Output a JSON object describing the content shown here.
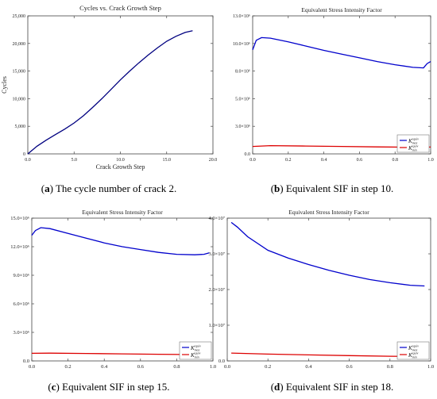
{
  "chart_data": [
    {
      "type": "line",
      "title": "Cycles vs. Crack Growth Step",
      "xlabel": "Crack Growth Step",
      "ylabel": "Cycles",
      "xlim": [
        0,
        20
      ],
      "ylim": [
        0,
        25000
      ],
      "x_ticks": [
        "0.0",
        "5.0",
        "10.0",
        "15.0",
        "20.0"
      ],
      "y_ticks": [
        "0",
        "5,000",
        "10,000",
        "15,000",
        "20,000",
        "25,000"
      ],
      "series": [
        {
          "color": "#000080",
          "points": [
            [
              0,
              0
            ],
            [
              1,
              1400
            ],
            [
              2,
              2500
            ],
            [
              3,
              3500
            ],
            [
              4,
              4500
            ],
            [
              5,
              5600
            ],
            [
              6,
              6900
            ],
            [
              7,
              8400
            ],
            [
              8,
              10000
            ],
            [
              9,
              11700
            ],
            [
              10,
              13400
            ],
            [
              11,
              15000
            ],
            [
              12,
              16500
            ],
            [
              13,
              17900
            ],
            [
              14,
              19200
            ],
            [
              15,
              20400
            ],
            [
              16,
              21300
            ],
            [
              17,
              22000
            ],
            [
              17.8,
              22300
            ]
          ]
        }
      ],
      "caption_label": "(a)",
      "caption_text": "The cycle number of crack 2."
    },
    {
      "type": "line",
      "title": "Equivalent Stress Intensity Factor",
      "xlabel": "",
      "ylabel": "",
      "xlim": [
        0,
        1
      ],
      "ylim": [
        0,
        13000000
      ],
      "x_ticks": [
        "0.0",
        "0.2",
        "0.4",
        "0.6",
        "0.8",
        "1.0"
      ],
      "y_ticks": [
        "0.0",
        "3.0×10⁶",
        "5.0×10⁶",
        "8.0×10⁶",
        "10.0×10⁶",
        "13.0×10⁶"
      ],
      "legend": [
        "K_max^equiv",
        "K_min^equiv"
      ],
      "legend_position": "bottom-right",
      "series": [
        {
          "name": "K_max^equiv",
          "color": "#0000cc",
          "points": [
            [
              0,
              9800000
            ],
            [
              0.02,
              10700000
            ],
            [
              0.05,
              10950000
            ],
            [
              0.1,
              10900000
            ],
            [
              0.2,
              10550000
            ],
            [
              0.3,
              10150000
            ],
            [
              0.4,
              9750000
            ],
            [
              0.5,
              9400000
            ],
            [
              0.6,
              9050000
            ],
            [
              0.7,
              8700000
            ],
            [
              0.8,
              8400000
            ],
            [
              0.9,
              8150000
            ],
            [
              0.96,
              8100000
            ],
            [
              0.98,
              8500000
            ],
            [
              1.0,
              8700000
            ]
          ]
        },
        {
          "name": "K_min^equiv",
          "color": "#dd0000",
          "points": [
            [
              0,
              700000
            ],
            [
              0.1,
              780000
            ],
            [
              0.3,
              740000
            ],
            [
              0.5,
              700000
            ],
            [
              0.7,
              660000
            ],
            [
              0.9,
              630000
            ],
            [
              1.0,
              640000
            ]
          ]
        }
      ],
      "caption_label": "(b)",
      "caption_text": "Equivalent SIF in step 10."
    },
    {
      "type": "line",
      "title": "Equivalent Stress Intensity Factor",
      "xlabel": "",
      "ylabel": "",
      "xlim": [
        0,
        1
      ],
      "ylim": [
        0,
        15000000
      ],
      "x_ticks": [
        "0.0",
        "0.2",
        "0.4",
        "0.6",
        "0.8",
        "1.0"
      ],
      "y_ticks": [
        "0.0",
        "3.0×10⁶",
        "6.0×10⁶",
        "9.0×10⁶",
        "12.0×10⁶",
        "15.0×10⁶"
      ],
      "legend": [
        "K_max^equiv",
        "K_min^equiv"
      ],
      "legend_position": "bottom-right",
      "series": [
        {
          "name": "K_max^equiv",
          "color": "#0000cc",
          "points": [
            [
              0,
              13200000
            ],
            [
              0.02,
              13700000
            ],
            [
              0.05,
              14000000
            ],
            [
              0.1,
              13900000
            ],
            [
              0.2,
              13400000
            ],
            [
              0.3,
              12900000
            ],
            [
              0.4,
              12400000
            ],
            [
              0.5,
              12000000
            ],
            [
              0.6,
              11700000
            ],
            [
              0.7,
              11400000
            ],
            [
              0.8,
              11200000
            ],
            [
              0.9,
              11150000
            ],
            [
              0.95,
              11200000
            ],
            [
              0.98,
              11350000
            ]
          ]
        },
        {
          "name": "K_min^equiv",
          "color": "#dd0000",
          "points": [
            [
              0,
              800000
            ],
            [
              0.1,
              820000
            ],
            [
              0.3,
              780000
            ],
            [
              0.5,
              740000
            ],
            [
              0.7,
              700000
            ],
            [
              0.9,
              670000
            ],
            [
              0.98,
              680000
            ]
          ]
        }
      ],
      "caption_label": "(c)",
      "caption_text": "Equivalent SIF in step 15."
    },
    {
      "type": "line",
      "title": "Equivalent Stress Intensity Factor",
      "xlabel": "",
      "ylabel": "",
      "xlim": [
        0,
        1
      ],
      "ylim": [
        0,
        40000000
      ],
      "x_ticks": [
        "0.0",
        "0.2",
        "0.4",
        "0.6",
        "0.8",
        "1.0"
      ],
      "y_ticks": [
        "0.0",
        "1.0×10⁷",
        "2.0×10⁷",
        "3.0×10⁷",
        "4.0×10⁷"
      ],
      "legend": [
        "K_max^equiv",
        "K_min^equiv"
      ],
      "legend_position": "bottom-right",
      "series": [
        {
          "name": "K_max^equiv",
          "color": "#0000cc",
          "points": [
            [
              0.02,
              38800000
            ],
            [
              0.05,
              37500000
            ],
            [
              0.1,
              34800000
            ],
            [
              0.2,
              31000000
            ],
            [
              0.3,
              28800000
            ],
            [
              0.4,
              27000000
            ],
            [
              0.5,
              25400000
            ],
            [
              0.6,
              24000000
            ],
            [
              0.7,
              22800000
            ],
            [
              0.8,
              21900000
            ],
            [
              0.9,
              21200000
            ],
            [
              0.97,
              21000000
            ]
          ]
        },
        {
          "name": "K_min^equiv",
          "color": "#dd0000",
          "points": [
            [
              0.02,
              2200000
            ],
            [
              0.2,
              1900000
            ],
            [
              0.4,
              1700000
            ],
            [
              0.6,
              1500000
            ],
            [
              0.8,
              1300000
            ],
            [
              0.97,
              1250000
            ]
          ]
        }
      ],
      "caption_label": "(d)",
      "caption_text": "Equivalent SIF in step 18."
    }
  ],
  "legend_labels": {
    "max_base": "K",
    "max_sub": "max",
    "max_sup": "equiv",
    "min_base": "K",
    "min_sub": "min",
    "min_sup": "equiv"
  }
}
